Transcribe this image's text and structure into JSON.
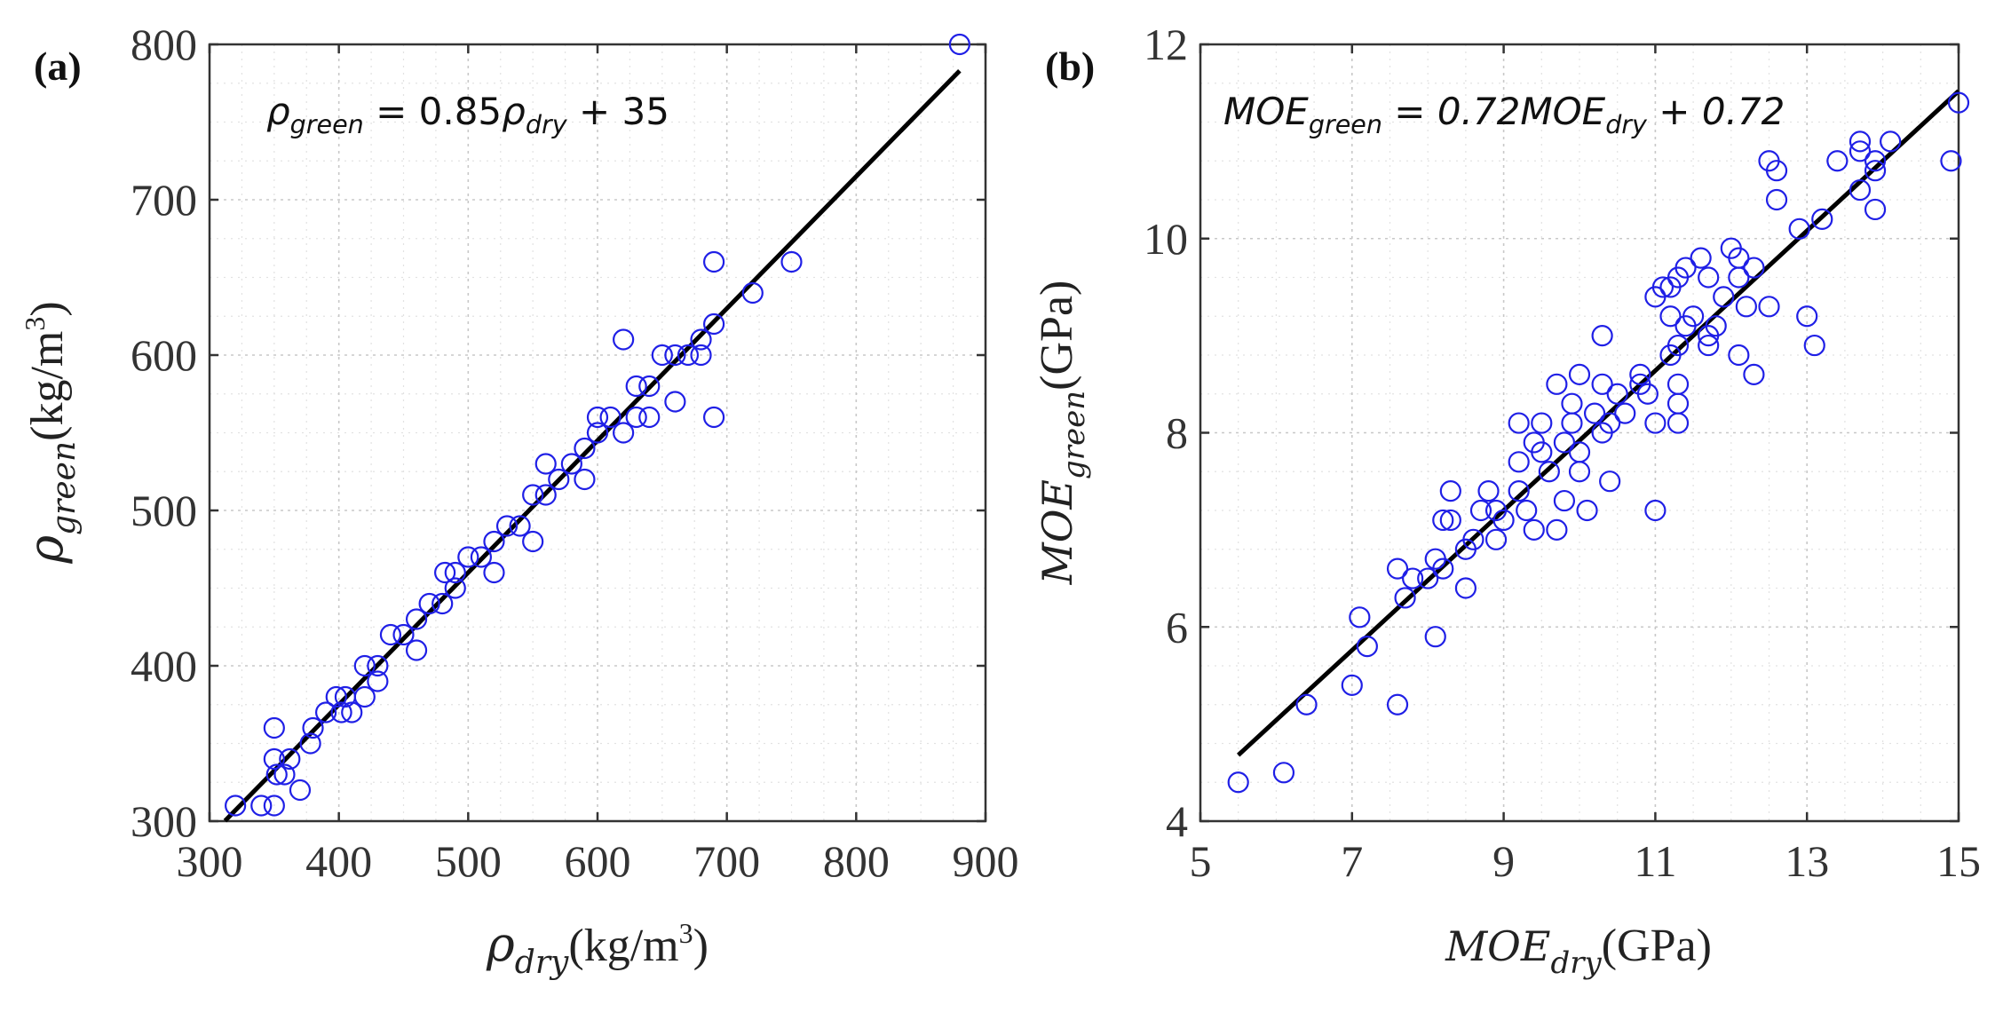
{
  "chart_data": [
    {
      "type": "scatter",
      "panel_label": "(a)",
      "equation": {
        "lhs_symbol": "ρ",
        "lhs_sub": "green",
        "mid": " = 0.85",
        "rhs_symbol": "ρ",
        "rhs_sub": "dry",
        "tail": " + 35"
      },
      "xlabel": {
        "symbol": "ρ",
        "sub": "dry",
        "unit": "(kg/m",
        "sup": "3",
        "close": ")"
      },
      "ylabel": {
        "symbol": "ρ",
        "sub": "green",
        "unit": "(kg/m",
        "sup": "3",
        "close": ")"
      },
      "xlim": [
        300,
        900
      ],
      "ylim": [
        300,
        800
      ],
      "xticks": [
        300,
        400,
        500,
        600,
        700,
        800,
        900
      ],
      "yticks": [
        300,
        400,
        500,
        600,
        700,
        800
      ],
      "xtick_labels": [
        "300",
        "400",
        "500",
        "600",
        "700",
        "800",
        "900"
      ],
      "ytick_labels": [
        "300",
        "400",
        "500",
        "600",
        "700",
        "800"
      ],
      "minor_step_x": 25,
      "minor_step_y": 25,
      "grid": true,
      "fit": {
        "slope": 0.85,
        "intercept": 35,
        "x_range": [
          312,
          880
        ]
      },
      "points": [
        [
          320,
          310
        ],
        [
          340,
          310
        ],
        [
          350,
          310
        ],
        [
          350,
          340
        ],
        [
          352,
          330
        ],
        [
          350,
          360
        ],
        [
          358,
          330
        ],
        [
          362,
          340
        ],
        [
          370,
          320
        ],
        [
          378,
          350
        ],
        [
          380,
          360
        ],
        [
          390,
          370
        ],
        [
          398,
          380
        ],
        [
          402,
          370
        ],
        [
          405,
          380
        ],
        [
          410,
          370
        ],
        [
          420,
          380
        ],
        [
          420,
          400
        ],
        [
          430,
          390
        ],
        [
          430,
          400
        ],
        [
          440,
          420
        ],
        [
          450,
          420
        ],
        [
          460,
          410
        ],
        [
          460,
          430
        ],
        [
          470,
          440
        ],
        [
          480,
          440
        ],
        [
          482,
          460
        ],
        [
          490,
          460
        ],
        [
          490,
          450
        ],
        [
          500,
          470
        ],
        [
          510,
          470
        ],
        [
          520,
          460
        ],
        [
          520,
          480
        ],
        [
          530,
          490
        ],
        [
          540,
          490
        ],
        [
          550,
          480
        ],
        [
          550,
          510
        ],
        [
          560,
          510
        ],
        [
          560,
          530
        ],
        [
          570,
          520
        ],
        [
          580,
          530
        ],
        [
          590,
          520
        ],
        [
          590,
          540
        ],
        [
          600,
          550
        ],
        [
          600,
          560
        ],
        [
          610,
          560
        ],
        [
          620,
          550
        ],
        [
          620,
          610
        ],
        [
          630,
          560
        ],
        [
          630,
          580
        ],
        [
          640,
          560
        ],
        [
          640,
          580
        ],
        [
          650,
          600
        ],
        [
          660,
          570
        ],
        [
          660,
          600
        ],
        [
          670,
          600
        ],
        [
          680,
          600
        ],
        [
          680,
          610
        ],
        [
          690,
          620
        ],
        [
          690,
          560
        ],
        [
          690,
          660
        ],
        [
          720,
          640
        ],
        [
          750,
          660
        ],
        [
          880,
          800
        ]
      ]
    },
    {
      "type": "scatter",
      "panel_label": "(b)",
      "equation": {
        "lhs_symbol": "MOE",
        "lhs_sub": "green",
        "mid": " = 0.72",
        "rhs_symbol": "MOE",
        "rhs_sub": "dry",
        "tail": " + 0.72"
      },
      "xlabel": {
        "symbol": "MOE",
        "sub": "dry",
        "unit": "(GPa)"
      },
      "ylabel": {
        "symbol": "MOE",
        "sub": "green",
        "unit": "(GPa)"
      },
      "xlim": [
        5,
        15
      ],
      "ylim": [
        4,
        12
      ],
      "xticks": [
        5,
        7,
        9,
        11,
        13,
        15
      ],
      "yticks": [
        4,
        6,
        8,
        10,
        12
      ],
      "xtick_labels": [
        "5",
        "7",
        "9",
        "11",
        "13",
        "15"
      ],
      "ytick_labels": [
        "4",
        "6",
        "8",
        "10",
        "12"
      ],
      "minor_step_x": 0.5,
      "minor_step_y": 0.4,
      "grid": true,
      "fit": {
        "slope": 0.72,
        "intercept": 0.72,
        "x_range": [
          5.5,
          15
        ]
      },
      "points": [
        [
          5.5,
          4.4
        ],
        [
          6.1,
          4.5
        ],
        [
          6.4,
          5.2
        ],
        [
          7.0,
          5.4
        ],
        [
          7.6,
          5.2
        ],
        [
          7.1,
          6.1
        ],
        [
          7.2,
          5.8
        ],
        [
          7.6,
          6.6
        ],
        [
          7.7,
          6.3
        ],
        [
          7.8,
          6.5
        ],
        [
          8.0,
          6.5
        ],
        [
          8.1,
          6.7
        ],
        [
          8.1,
          5.9
        ],
        [
          8.2,
          6.6
        ],
        [
          8.2,
          7.1
        ],
        [
          8.3,
          7.4
        ],
        [
          8.3,
          7.1
        ],
        [
          8.5,
          6.4
        ],
        [
          8.5,
          6.8
        ],
        [
          8.6,
          6.9
        ],
        [
          8.7,
          7.2
        ],
        [
          8.8,
          7.4
        ],
        [
          8.9,
          7.2
        ],
        [
          8.9,
          6.9
        ],
        [
          9.0,
          7.1
        ],
        [
          9.2,
          7.4
        ],
        [
          9.2,
          7.7
        ],
        [
          9.2,
          8.1
        ],
        [
          9.3,
          7.2
        ],
        [
          9.4,
          7.0
        ],
        [
          9.4,
          7.9
        ],
        [
          9.5,
          7.8
        ],
        [
          9.5,
          8.1
        ],
        [
          9.6,
          7.6
        ],
        [
          9.7,
          8.5
        ],
        [
          9.7,
          7.0
        ],
        [
          9.8,
          7.3
        ],
        [
          9.8,
          7.9
        ],
        [
          9.9,
          8.1
        ],
        [
          9.9,
          8.3
        ],
        [
          10.0,
          7.6
        ],
        [
          10.0,
          8.6
        ],
        [
          10.0,
          7.8
        ],
        [
          10.1,
          7.2
        ],
        [
          10.2,
          8.2
        ],
        [
          10.3,
          8.0
        ],
        [
          10.3,
          9.0
        ],
        [
          10.3,
          8.5
        ],
        [
          10.4,
          7.5
        ],
        [
          10.4,
          8.1
        ],
        [
          10.5,
          8.4
        ],
        [
          10.6,
          8.2
        ],
        [
          10.8,
          8.6
        ],
        [
          10.8,
          8.5
        ],
        [
          10.9,
          8.4
        ],
        [
          11.0,
          9.4
        ],
        [
          11.0,
          8.1
        ],
        [
          11.0,
          7.2
        ],
        [
          11.1,
          9.5
        ],
        [
          11.2,
          9.5
        ],
        [
          11.2,
          9.2
        ],
        [
          11.2,
          8.8
        ],
        [
          11.3,
          8.9
        ],
        [
          11.3,
          8.5
        ],
        [
          11.3,
          8.3
        ],
        [
          11.3,
          8.1
        ],
        [
          11.3,
          9.6
        ],
        [
          11.4,
          9.7
        ],
        [
          11.4,
          9.1
        ],
        [
          11.5,
          9.2
        ],
        [
          11.6,
          9.8
        ],
        [
          11.7,
          9.0
        ],
        [
          11.7,
          9.6
        ],
        [
          11.7,
          8.9
        ],
        [
          11.8,
          9.1
        ],
        [
          11.9,
          9.4
        ],
        [
          12.0,
          9.9
        ],
        [
          12.1,
          9.8
        ],
        [
          12.1,
          9.6
        ],
        [
          12.1,
          8.8
        ],
        [
          12.2,
          9.3
        ],
        [
          12.3,
          9.7
        ],
        [
          12.3,
          8.6
        ],
        [
          12.5,
          9.3
        ],
        [
          12.5,
          10.8
        ],
        [
          12.6,
          10.7
        ],
        [
          12.6,
          10.4
        ],
        [
          12.9,
          10.1
        ],
        [
          13.0,
          9.2
        ],
        [
          13.1,
          8.9
        ],
        [
          13.2,
          10.2
        ],
        [
          13.4,
          10.8
        ],
        [
          13.7,
          11.0
        ],
        [
          13.7,
          10.9
        ],
        [
          13.7,
          10.5
        ],
        [
          13.9,
          10.7
        ],
        [
          13.9,
          10.8
        ],
        [
          13.9,
          10.3
        ],
        [
          14.1,
          11.0
        ],
        [
          14.9,
          10.8
        ],
        [
          15.0,
          11.4
        ]
      ]
    }
  ]
}
